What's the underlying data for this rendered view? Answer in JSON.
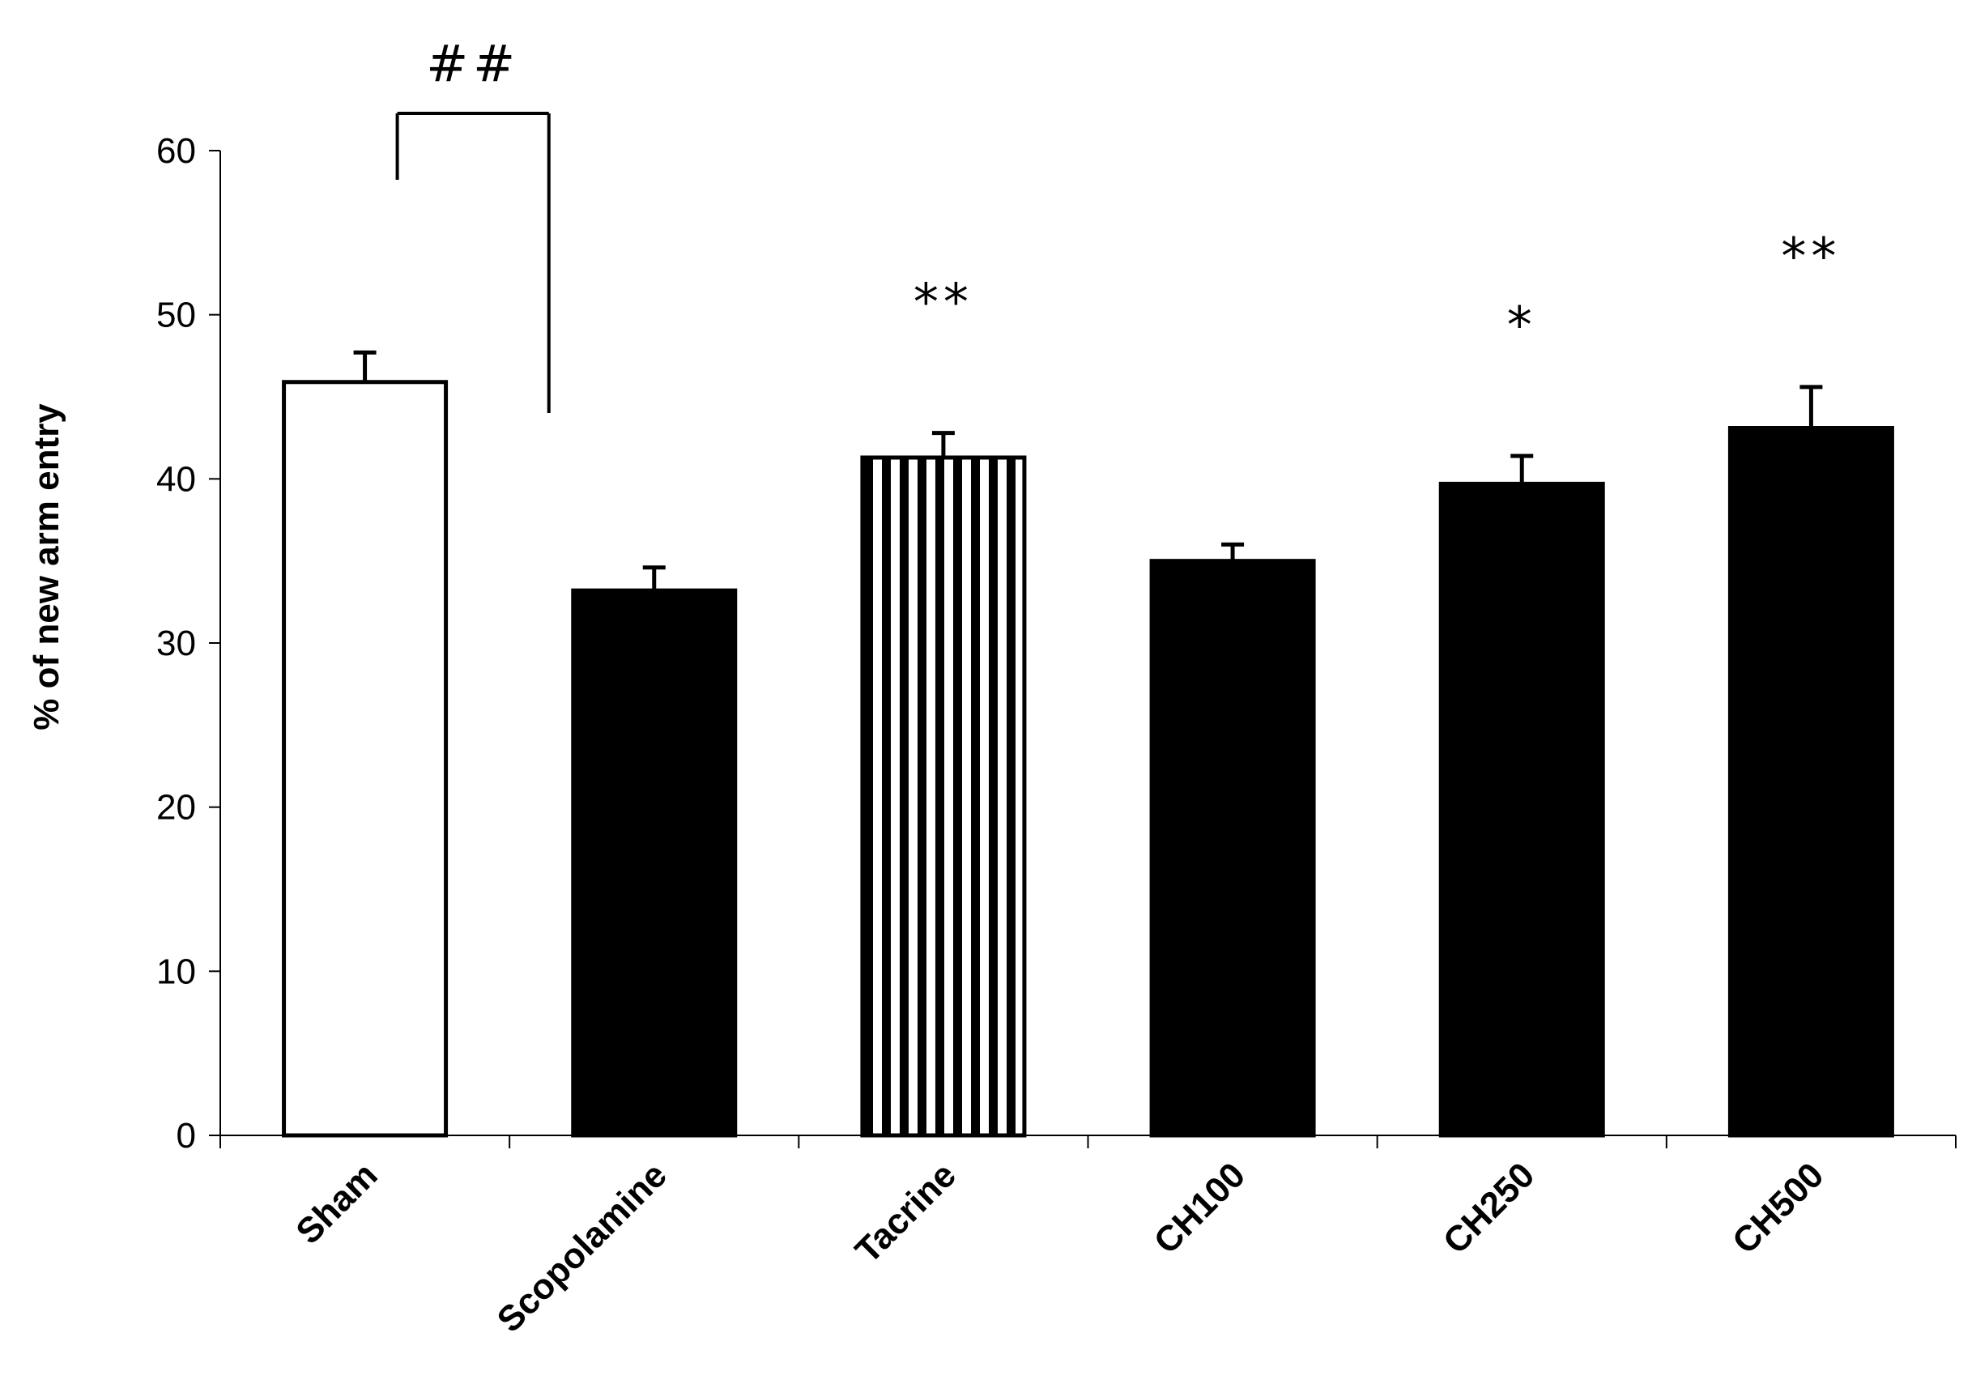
{
  "chart_data": {
    "type": "bar",
    "title": "",
    "xlabel": "",
    "ylabel": "% of new arm entry",
    "ylim": [
      0,
      60
    ],
    "yticks": [
      0,
      10,
      20,
      30,
      40,
      50,
      60
    ],
    "grid": false,
    "legend": "none",
    "categories": [
      "Sham",
      "Scopolamine",
      "Tacrine",
      "CH100",
      "CH250",
      "CH500"
    ],
    "values": [
      45.9,
      33.2,
      41.3,
      35.0,
      39.7,
      43.1
    ],
    "errors": [
      1.8,
      1.4,
      1.5,
      1.0,
      1.7,
      2.5
    ],
    "fills": [
      "white",
      "solid",
      "vertical-stripes",
      "solid",
      "solid",
      "solid"
    ],
    "significance": [
      "",
      "",
      "**",
      "",
      "*",
      "**"
    ],
    "comparison": {
      "from": "Sham",
      "to": "Scopolamine",
      "label": "##"
    },
    "colors": {
      "bar_solid": "#000000",
      "bar_outline": "#000000",
      "background": "#ffffff"
    }
  }
}
